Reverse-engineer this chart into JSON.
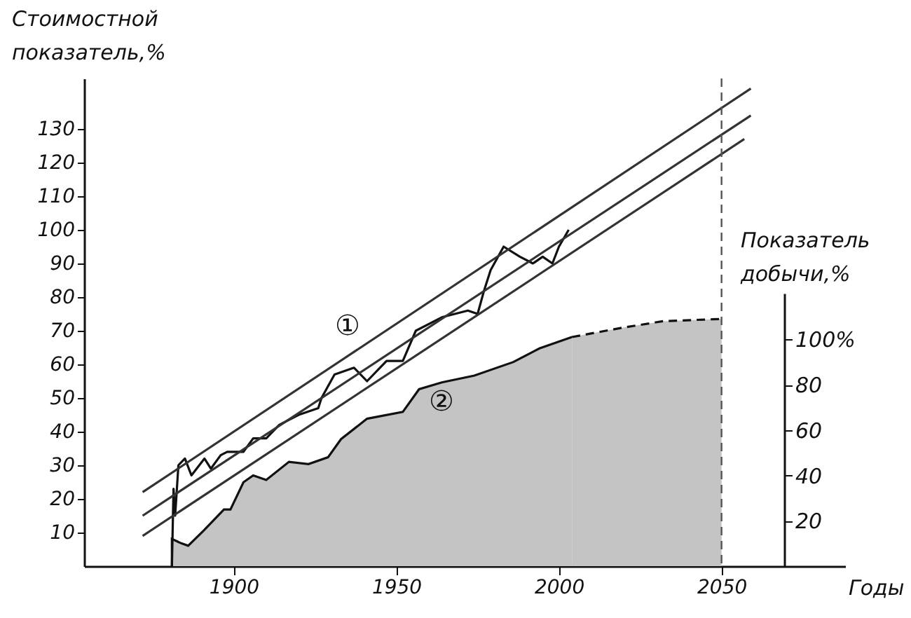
{
  "chart_data": {
    "type": "line",
    "xlabel": "Годы",
    "ylabel": "Стоимостной показатель,%",
    "y2label": "Показатель добычи,%",
    "xlim": [
      1854,
      2088
    ],
    "xticks": [
      1900,
      1950,
      2000,
      2050
    ],
    "ylim": [
      0,
      145
    ],
    "yticks": [
      10,
      20,
      30,
      40,
      50,
      60,
      70,
      80,
      90,
      100,
      110,
      120,
      130
    ],
    "y2lim": [
      0,
      215
    ],
    "y2ticks": [
      20,
      40,
      60,
      80,
      {
        "value": 100,
        "label": "100%"
      }
    ],
    "grid": false,
    "series": [
      {
        "color": "#111111",
        "x": [
          1881,
          1881.5,
          1882,
          1883,
          1885,
          1887,
          1891,
          1893,
          1896,
          1898,
          1903,
          1906,
          1910,
          1914,
          1920,
          1926,
          1927,
          1931,
          1937,
          1941,
          1947,
          1952,
          1956,
          1964,
          1972,
          1975,
          1977,
          1979,
          1983,
          1988,
          1992,
          1995,
          1998,
          2000,
          2003
        ],
        "values": [
          0,
          23,
          15,
          30,
          32,
          27,
          32,
          29,
          33,
          34,
          34,
          38,
          38,
          42,
          45,
          47,
          50,
          57,
          59,
          55,
          61,
          61,
          70,
          74,
          76,
          75,
          82,
          88,
          95,
          92,
          90,
          92,
          90,
          95,
          100
        ]
      },
      {
        "color": "#333333",
        "x": [
          1872,
          2059
        ],
        "values": [
          22,
          142
        ]
      },
      {
        "color": "#333333",
        "x": [
          1872,
          2059
        ],
        "values": [
          15,
          134
        ]
      },
      {
        "color": "#333333",
        "x": [
          1872,
          2057
        ],
        "values": [
          9,
          127
        ]
      },
      {
        "type": "area",
        "axis": "y2",
        "color": "#c4c4c4",
        "x": [
          1881,
          1881,
          1884,
          1886,
          1891,
          1897,
          1899,
          1903,
          1906,
          1910,
          1917,
          1923,
          1929,
          1933,
          1941,
          1952,
          1957,
          1964,
          1974,
          1986,
          1994,
          2004
        ],
        "values": [
          0,
          12,
          10,
          9,
          16,
          25,
          25,
          37,
          40,
          38,
          46,
          45,
          48,
          56,
          65,
          68,
          78,
          81,
          84,
          90,
          96,
          101
        ]
      },
      {
        "type": "area",
        "axis": "y2",
        "color": "#c4c4c4",
        "line_style": "dashed",
        "x": [
          2004,
          2019,
          2032,
          2050
        ],
        "values": [
          101,
          105,
          108,
          109
        ]
      }
    ],
    "ref_lines": [
      {
        "axis": "x",
        "value": 2050,
        "line_style": "dashed",
        "color": "#555555"
      }
    ],
    "annotations": [
      "①",
      "②"
    ]
  }
}
